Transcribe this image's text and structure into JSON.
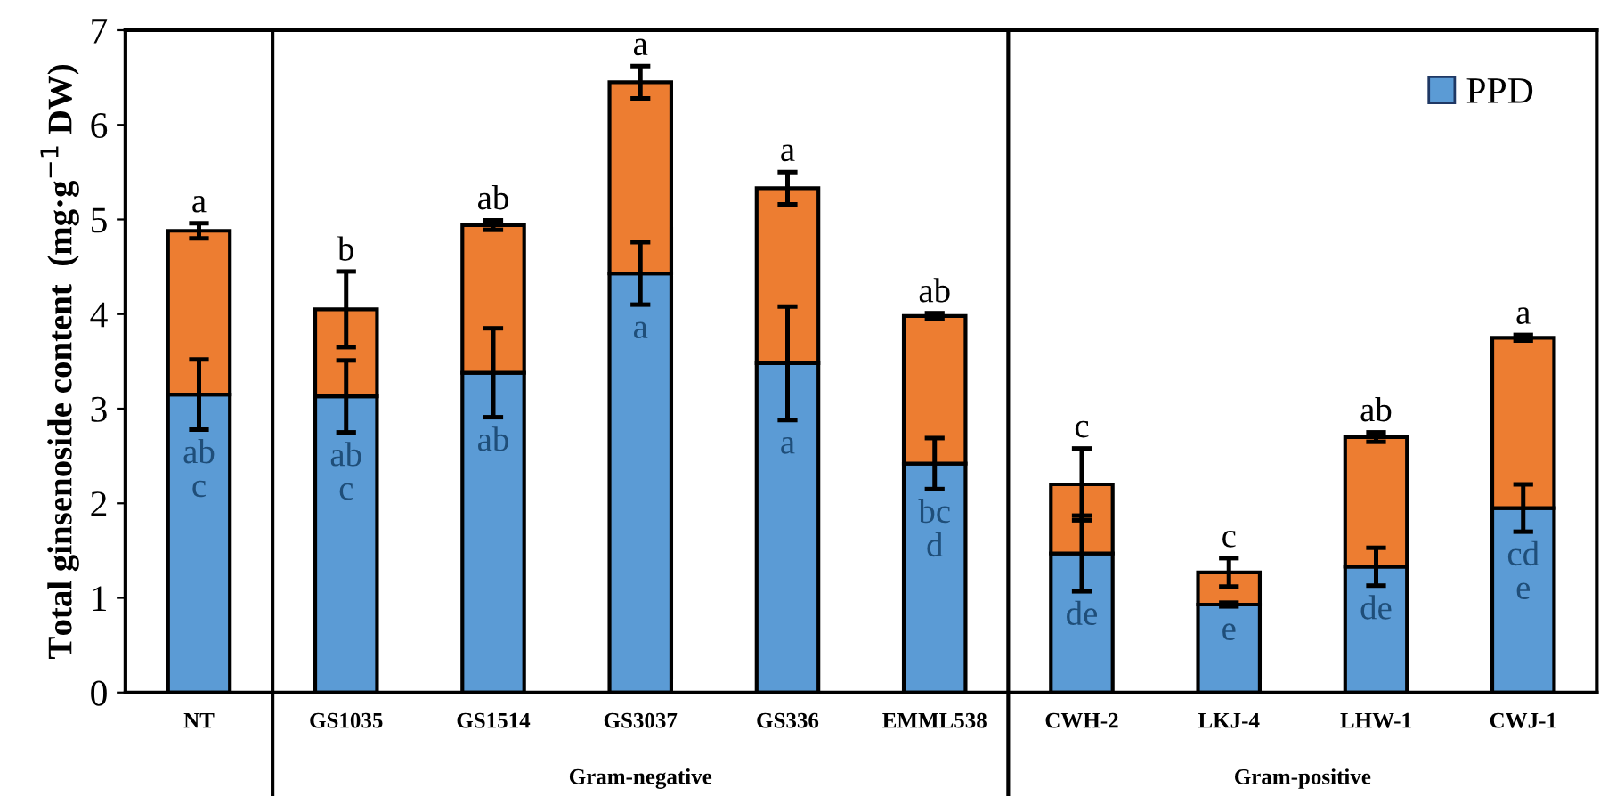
{
  "chart_data": {
    "type": "bar",
    "stacked": true,
    "ylabel": "Total ginsenoside content  (mg·g$^{−1}$ DW)",
    "categories": [
      "NT",
      "GS1035",
      "GS1514",
      "GS3037",
      "GS336",
      "EMML538",
      "CWH-2",
      "LKJ-4",
      "LHW-1",
      "CWJ-1"
    ],
    "series": [
      {
        "name": "PPD",
        "color": "#5b9bd5",
        "values": [
          3.15,
          3.13,
          3.38,
          4.43,
          3.48,
          2.42,
          1.47,
          0.93,
          1.33,
          1.95
        ],
        "errors": [
          0.37,
          0.38,
          0.47,
          0.33,
          0.6,
          0.27,
          0.4,
          0.02,
          0.2,
          0.25
        ],
        "value_labels": [
          "ab\nc",
          "ab\nc",
          "ab",
          "a",
          "a",
          "bc\nd",
          "de",
          "e",
          "de",
          "cd\ne"
        ]
      },
      {
        "color": "#ed7d31",
        "values": [
          1.73,
          0.92,
          1.56,
          2.02,
          1.85,
          1.56,
          0.73,
          0.34,
          1.37,
          1.8
        ],
        "errors": [
          0.08,
          0.4,
          0.05,
          0.17,
          0.17,
          0.03,
          0.38,
          0.15,
          0.05,
          0.03
        ],
        "value_labels": [
          "a",
          "b",
          "ab",
          "a",
          "a",
          "ab",
          "c",
          "c",
          "ab",
          "a"
        ]
      }
    ],
    "ylim": [
      0,
      7
    ],
    "yticks": [
      0,
      1,
      2,
      3,
      4,
      5,
      6,
      7
    ],
    "annotations": [
      "Gram-negative",
      "Gram-positive"
    ],
    "legend": "top right",
    "grid": false
  }
}
